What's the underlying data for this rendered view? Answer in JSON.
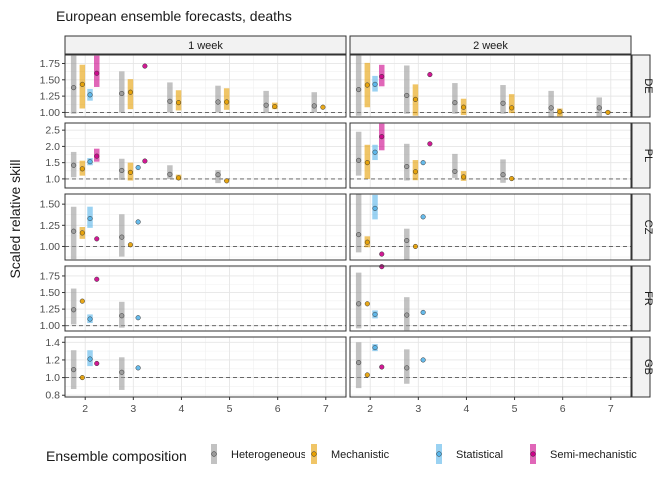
{
  "chart_data": {
    "type": "scatter",
    "title": "European ensemble forecasts, deaths",
    "ylabel": "Scaled relative skill",
    "xlabel": "",
    "x_ticks": [
      2,
      3,
      4,
      5,
      6,
      7
    ],
    "columns": [
      "1 week",
      "2 week"
    ],
    "rows": [
      {
        "name": "DE",
        "ylim": [
          0.93,
          1.88
        ],
        "ticks": [
          1.0,
          1.25,
          1.5,
          1.75
        ],
        "tick_labels": [
          "1.00",
          "1.25",
          "1.50",
          "1.75"
        ]
      },
      {
        "name": "PL",
        "ylim": [
          0.72,
          2.72
        ],
        "ticks": [
          1.0,
          1.5,
          2.0,
          2.5
        ],
        "tick_labels": [
          "1.0",
          "1.5",
          "2.0",
          "2.5"
        ]
      },
      {
        "name": "CZ",
        "ylim": [
          0.84,
          1.62
        ],
        "ticks": [
          1.0,
          1.25,
          1.5
        ],
        "tick_labels": [
          "1.00",
          "1.25",
          "1.50"
        ]
      },
      {
        "name": "FR",
        "ylim": [
          0.92,
          1.9
        ],
        "ticks": [
          1.0,
          1.25,
          1.5,
          1.75
        ],
        "tick_labels": [
          "1.00",
          "1.25",
          "1.50",
          "1.75"
        ]
      },
      {
        "name": "GB",
        "ylim": [
          0.78,
          1.46
        ],
        "ticks": [
          0.8,
          1.0,
          1.2,
          1.4
        ],
        "tick_labels": [
          "0.8",
          "1.0",
          "1.2",
          "1.4"
        ]
      }
    ],
    "reference_line": 1.0,
    "legend": {
      "title": "Ensemble composition",
      "position": "bottom",
      "items": [
        {
          "name": "Heterogeneous",
          "color": "#999999"
        },
        {
          "name": "Mechanistic",
          "color": "#E69F00"
        },
        {
          "name": "Statistical",
          "color": "#56B4E9"
        },
        {
          "name": "Semi-mechanistic",
          "color": "#CC0088"
        }
      ]
    },
    "series": [
      {
        "name": "Heterogeneous",
        "offset": -0.24,
        "data": {
          "DE|1 week": [
            [
              2,
              0.98,
              1.87,
              1.38
            ],
            [
              3,
              1.0,
              1.63,
              1.29
            ],
            [
              4,
              1.0,
              1.46,
              1.17
            ],
            [
              5,
              1.0,
              1.41,
              1.16
            ],
            [
              6,
              0.99,
              1.33,
              1.11
            ],
            [
              7,
              1.0,
              1.31,
              1.1
            ]
          ],
          "DE|2 week": [
            [
              2,
              0.95,
              1.87,
              1.35
            ],
            [
              3,
              0.98,
              1.72,
              1.26
            ],
            [
              4,
              0.98,
              1.45,
              1.15
            ],
            [
              5,
              0.98,
              1.42,
              1.14
            ],
            [
              6,
              0.92,
              1.33,
              1.07
            ],
            [
              7,
              0.94,
              1.23,
              1.07
            ]
          ],
          "PL|1 week": [
            [
              2,
              1.05,
              1.83,
              1.42
            ],
            [
              3,
              0.97,
              1.62,
              1.26
            ],
            [
              4,
              1.0,
              1.42,
              1.14
            ],
            [
              5,
              0.87,
              1.27,
              1.13
            ]
          ],
          "PL|2 week": [
            [
              2,
              1.1,
              2.45,
              1.57
            ],
            [
              3,
              0.95,
              2.08,
              1.38
            ],
            [
              4,
              1.03,
              1.77,
              1.23
            ],
            [
              5,
              0.88,
              1.6,
              1.13
            ]
          ],
          "CZ|1 week": [
            [
              2,
              0.85,
              1.47,
              1.18
            ],
            [
              3,
              0.88,
              1.38,
              1.11
            ]
          ],
          "CZ|2 week": [
            [
              2,
              0.93,
              1.62,
              1.14
            ],
            [
              3,
              0.84,
              1.21,
              1.07
            ]
          ],
          "FR|1 week": [
            [
              2,
              1.02,
              1.56,
              1.24
            ],
            [
              3,
              0.97,
              1.36,
              1.15
            ]
          ],
          "FR|2 week": [
            [
              2,
              0.96,
              1.8,
              1.33
            ],
            [
              3,
              0.93,
              1.43,
              1.16
            ]
          ],
          "GB|1 week": [
            [
              2,
              0.87,
              1.31,
              1.09
            ],
            [
              3,
              0.86,
              1.23,
              1.06
            ]
          ],
          "GB|2 week": [
            [
              2,
              0.88,
              1.4,
              1.17
            ],
            [
              3,
              0.93,
              1.32,
              1.11
            ]
          ]
        }
      },
      {
        "name": "Mechanistic",
        "offset": -0.06,
        "data": {
          "DE|1 week": [
            [
              2,
              1.06,
              1.73,
              1.43
            ],
            [
              3,
              1.05,
              1.51,
              1.31
            ],
            [
              4,
              1.03,
              1.34,
              1.15
            ],
            [
              5,
              1.04,
              1.37,
              1.16
            ],
            [
              6,
              1.05,
              1.15,
              1.09
            ],
            [
              7,
              1.08,
              1.08,
              1.08
            ]
          ],
          "DE|2 week": [
            [
              2,
              1.08,
              1.76,
              1.42
            ],
            [
              3,
              0.95,
              1.43,
              1.2
            ],
            [
              4,
              0.96,
              1.21,
              1.08
            ],
            [
              5,
              0.99,
              1.28,
              1.07
            ],
            [
              6,
              0.94,
              1.06,
              1.01
            ],
            [
              7,
              1.0,
              1.02,
              1.0
            ]
          ],
          "PL|1 week": [
            [
              2,
              1.1,
              1.56,
              1.31
            ],
            [
              3,
              0.95,
              1.5,
              1.2
            ],
            [
              4,
              0.97,
              1.13,
              1.03
            ],
            [
              5,
              0.93,
              0.96,
              0.94
            ]
          ],
          "PL|2 week": [
            [
              2,
              1.0,
              2.05,
              1.5
            ],
            [
              3,
              0.96,
              1.58,
              1.22
            ],
            [
              4,
              0.94,
              1.24,
              1.06
            ],
            [
              5,
              1.01,
              1.02,
              1.01
            ]
          ],
          "CZ|1 week": [
            [
              2,
              1.09,
              1.23,
              1.16
            ],
            [
              3,
              1.02,
              1.02,
              1.02
            ]
          ],
          "CZ|2 week": [
            [
              2,
              0.99,
              1.12,
              1.05
            ],
            [
              3,
              1.0,
              1.0,
              1.0
            ]
          ],
          "FR|1 week": [
            [
              2,
              1.37,
              1.37,
              1.37
            ]
          ],
          "FR|2 week": [
            [
              2,
              1.33,
              1.33,
              1.33
            ]
          ],
          "GB|1 week": [
            [
              2,
              1.0,
              1.0,
              1.0
            ]
          ],
          "GB|2 week": [
            [
              2,
              1.03,
              1.03,
              1.03
            ]
          ]
        }
      },
      {
        "name": "Statistical",
        "offset": 0.1,
        "data": {
          "DE|1 week": [
            [
              2,
              1.18,
              1.36,
              1.27
            ]
          ],
          "DE|2 week": [
            [
              2,
              1.32,
              1.56,
              1.43
            ]
          ],
          "PL|1 week": [
            [
              2,
              1.42,
              1.64,
              1.53
            ],
            [
              3,
              1.35,
              1.35,
              1.35
            ]
          ],
          "PL|2 week": [
            [
              2,
              1.58,
              2.05,
              1.82
            ],
            [
              3,
              1.5,
              1.5,
              1.5
            ]
          ],
          "CZ|1 week": [
            [
              2,
              1.22,
              1.47,
              1.33
            ],
            [
              3,
              1.29,
              1.29,
              1.29
            ]
          ],
          "CZ|2 week": [
            [
              2,
              1.32,
              1.61,
              1.45
            ],
            [
              3,
              1.35,
              1.35,
              1.35
            ]
          ],
          "FR|1 week": [
            [
              2,
              1.04,
              1.17,
              1.1
            ],
            [
              3,
              1.12,
              1.12,
              1.12
            ]
          ],
          "FR|2 week": [
            [
              2,
              1.11,
              1.23,
              1.17
            ],
            [
              3,
              1.2,
              1.2,
              1.2
            ]
          ],
          "GB|1 week": [
            [
              2,
              1.13,
              1.31,
              1.21
            ],
            [
              3,
              1.11,
              1.11,
              1.11
            ]
          ],
          "GB|2 week": [
            [
              2,
              1.3,
              1.38,
              1.34
            ],
            [
              3,
              1.2,
              1.2,
              1.2
            ]
          ]
        }
      },
      {
        "name": "Semi-mechanistic",
        "offset": 0.24,
        "data": {
          "DE|1 week": [
            [
              2,
              1.39,
              1.87,
              1.6
            ],
            [
              3,
              1.71,
              1.71,
              1.71
            ]
          ],
          "DE|2 week": [
            [
              2,
              1.4,
              1.73,
              1.55
            ],
            [
              3,
              1.58,
              1.58,
              1.58
            ]
          ],
          "PL|1 week": [
            [
              2,
              1.53,
              1.93,
              1.7
            ],
            [
              3,
              1.55,
              1.55,
              1.55
            ]
          ],
          "PL|2 week": [
            [
              2,
              1.88,
              2.7,
              2.3
            ],
            [
              3,
              2.08,
              2.08,
              2.08
            ]
          ],
          "CZ|1 week": [
            [
              2,
              1.09,
              1.09,
              1.09
            ]
          ],
          "CZ|2 week": [
            [
              2,
              0.91,
              0.91,
              0.91
            ]
          ],
          "FR|1 week": [
            [
              2,
              1.7,
              1.7,
              1.7
            ]
          ],
          "FR|2 week": [
            [
              2,
              1.89,
              1.89,
              1.89
            ]
          ],
          "GB|1 week": [
            [
              2,
              1.16,
              1.16,
              1.16
            ]
          ],
          "GB|2 week": [
            [
              2,
              1.12,
              1.12,
              1.12
            ]
          ]
        }
      }
    ]
  }
}
